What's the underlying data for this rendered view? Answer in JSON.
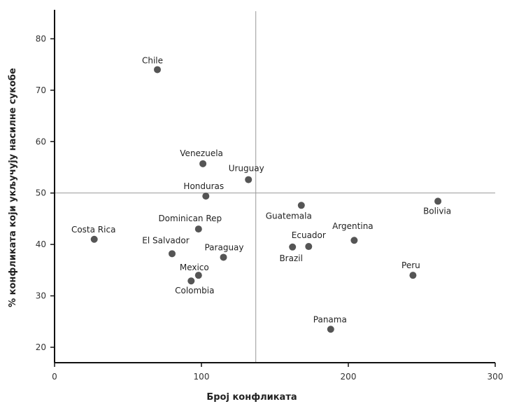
{
  "chart_data": {
    "type": "scatter",
    "xlabel": "Број конфликата",
    "ylabel": "% конфликата који укључују насилне сукобе",
    "xlim": [
      0,
      300
    ],
    "ylim": [
      17,
      87
    ],
    "x_ticks": [
      0,
      100,
      200,
      300
    ],
    "y_ticks": [
      20,
      30,
      40,
      50,
      60,
      70,
      80
    ],
    "x_tick_labels": [
      "0",
      "100",
      "200",
      "300"
    ],
    "y_tick_labels": [
      "20",
      "30",
      "40",
      "50",
      "60",
      "70",
      "80"
    ],
    "reference_lines": {
      "x": 137,
      "y": 50
    },
    "grid": false,
    "points": [
      {
        "label": "Chile",
        "x": 70,
        "y": 74
      },
      {
        "label": "Venezuela",
        "x": 101,
        "y": 55.7
      },
      {
        "label": "Uruguay",
        "x": 132,
        "y": 52.6
      },
      {
        "label": "Honduras",
        "x": 103,
        "y": 49.4
      },
      {
        "label": "Guatemala",
        "x": 168,
        "y": 47.6
      },
      {
        "label": "Bolivia",
        "x": 261,
        "y": 48.4
      },
      {
        "label": "Dominican Rep",
        "x": 98,
        "y": 43
      },
      {
        "label": "Costa Rica",
        "x": 27,
        "y": 41
      },
      {
        "label": "Argentina",
        "x": 204,
        "y": 40.8
      },
      {
        "label": "Ecuador",
        "x": 173,
        "y": 39.6
      },
      {
        "label": "Brazil",
        "x": 162,
        "y": 39.5
      },
      {
        "label": "El Salvador",
        "x": 80,
        "y": 38.2
      },
      {
        "label": "Paraguay",
        "x": 115,
        "y": 37.5
      },
      {
        "label": "Mexico",
        "x": 98,
        "y": 34
      },
      {
        "label": "Peru",
        "x": 244,
        "y": 34
      },
      {
        "label": "Colombia",
        "x": 93,
        "y": 32.9
      },
      {
        "label": "Panama",
        "x": 188,
        "y": 23.5
      }
    ]
  }
}
